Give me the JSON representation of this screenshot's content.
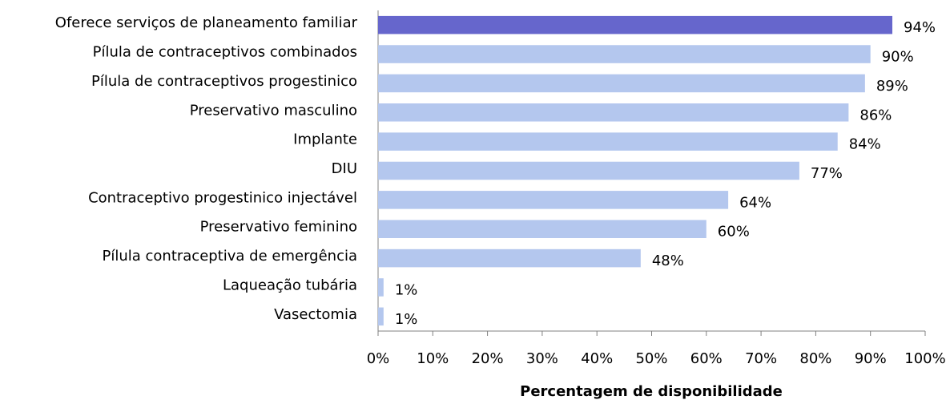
{
  "chart_data": {
    "type": "bar",
    "orientation": "horizontal",
    "x_label": "Percentagem de disponibilidade",
    "categories": [
      "Oferece serviços de planeamento familiar",
      "Pílula de contraceptivos combinados",
      "Pílula de contraceptivos progestinico",
      "Preservativo masculino",
      "Implante",
      "DIU",
      "Contraceptivo progestinico injectável",
      "Preservativo feminino",
      "Pílula contraceptiva de emergência",
      "Laqueação tubária",
      "Vasectomia"
    ],
    "values": [
      94,
      90,
      89,
      86,
      84,
      77,
      64,
      60,
      48,
      1,
      1
    ],
    "value_labels": [
      "94%",
      "90%",
      "89%",
      "86%",
      "84%",
      "77%",
      "64%",
      "60%",
      "48%",
      "1%",
      "1%"
    ],
    "colors": [
      "#6666cc",
      "#b4c7ee",
      "#b4c7ee",
      "#b4c7ee",
      "#b4c7ee",
      "#b4c7ee",
      "#b4c7ee",
      "#b4c7ee",
      "#b4c7ee",
      "#b4c7ee",
      "#b4c7ee"
    ],
    "xlim": [
      0,
      100
    ],
    "xticks": [
      {
        "value": 0,
        "label": "0%"
      },
      {
        "value": 10,
        "label": "10%"
      },
      {
        "value": 20,
        "label": "20%"
      },
      {
        "value": 30,
        "label": "30%"
      },
      {
        "value": 40,
        "label": "40%"
      },
      {
        "value": 50,
        "label": "50%"
      },
      {
        "value": 60,
        "label": "60%"
      },
      {
        "value": 70,
        "label": "70%"
      },
      {
        "value": 80,
        "label": "80%"
      },
      {
        "value": 90,
        "label": "90%"
      },
      {
        "value": 100,
        "label": "100%"
      }
    ],
    "grid": false
  }
}
